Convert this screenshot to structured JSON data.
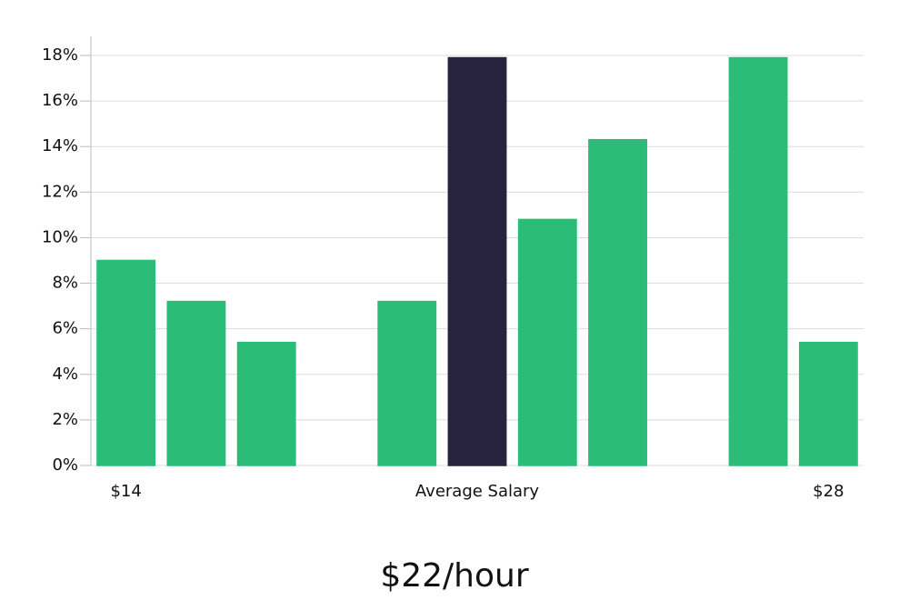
{
  "chart_data": {
    "type": "bar",
    "subtitle": "$22/hour",
    "categories": [
      "$14",
      null,
      null,
      null,
      null,
      "Average Salary",
      null,
      null,
      null,
      null,
      "$28"
    ],
    "values": [
      9.0,
      7.2,
      5.4,
      0,
      7.2,
      17.9,
      10.8,
      14.3,
      0,
      17.9,
      5.4
    ],
    "colors": [
      "#2bbd77",
      "#2bbd77",
      "#2bbd77",
      "#2bbd77",
      "#2bbd77",
      "#28233f",
      "#2bbd77",
      "#2bbd77",
      "#2bbd77",
      "#2bbd77",
      "#2bbd77"
    ],
    "ylim": [
      0,
      18
    ],
    "yticks": [
      {
        "value": 0,
        "label": "0%"
      },
      {
        "value": 2,
        "label": "2%"
      },
      {
        "value": 4,
        "label": "4%"
      },
      {
        "value": 6,
        "label": "6%"
      },
      {
        "value": 8,
        "label": "8%"
      },
      {
        "value": 10,
        "label": "10%"
      },
      {
        "value": 12,
        "label": "12%"
      },
      {
        "value": 14,
        "label": "14%"
      },
      {
        "value": 16,
        "label": "16%"
      },
      {
        "value": 18,
        "label": "18%"
      }
    ],
    "grid": true
  }
}
